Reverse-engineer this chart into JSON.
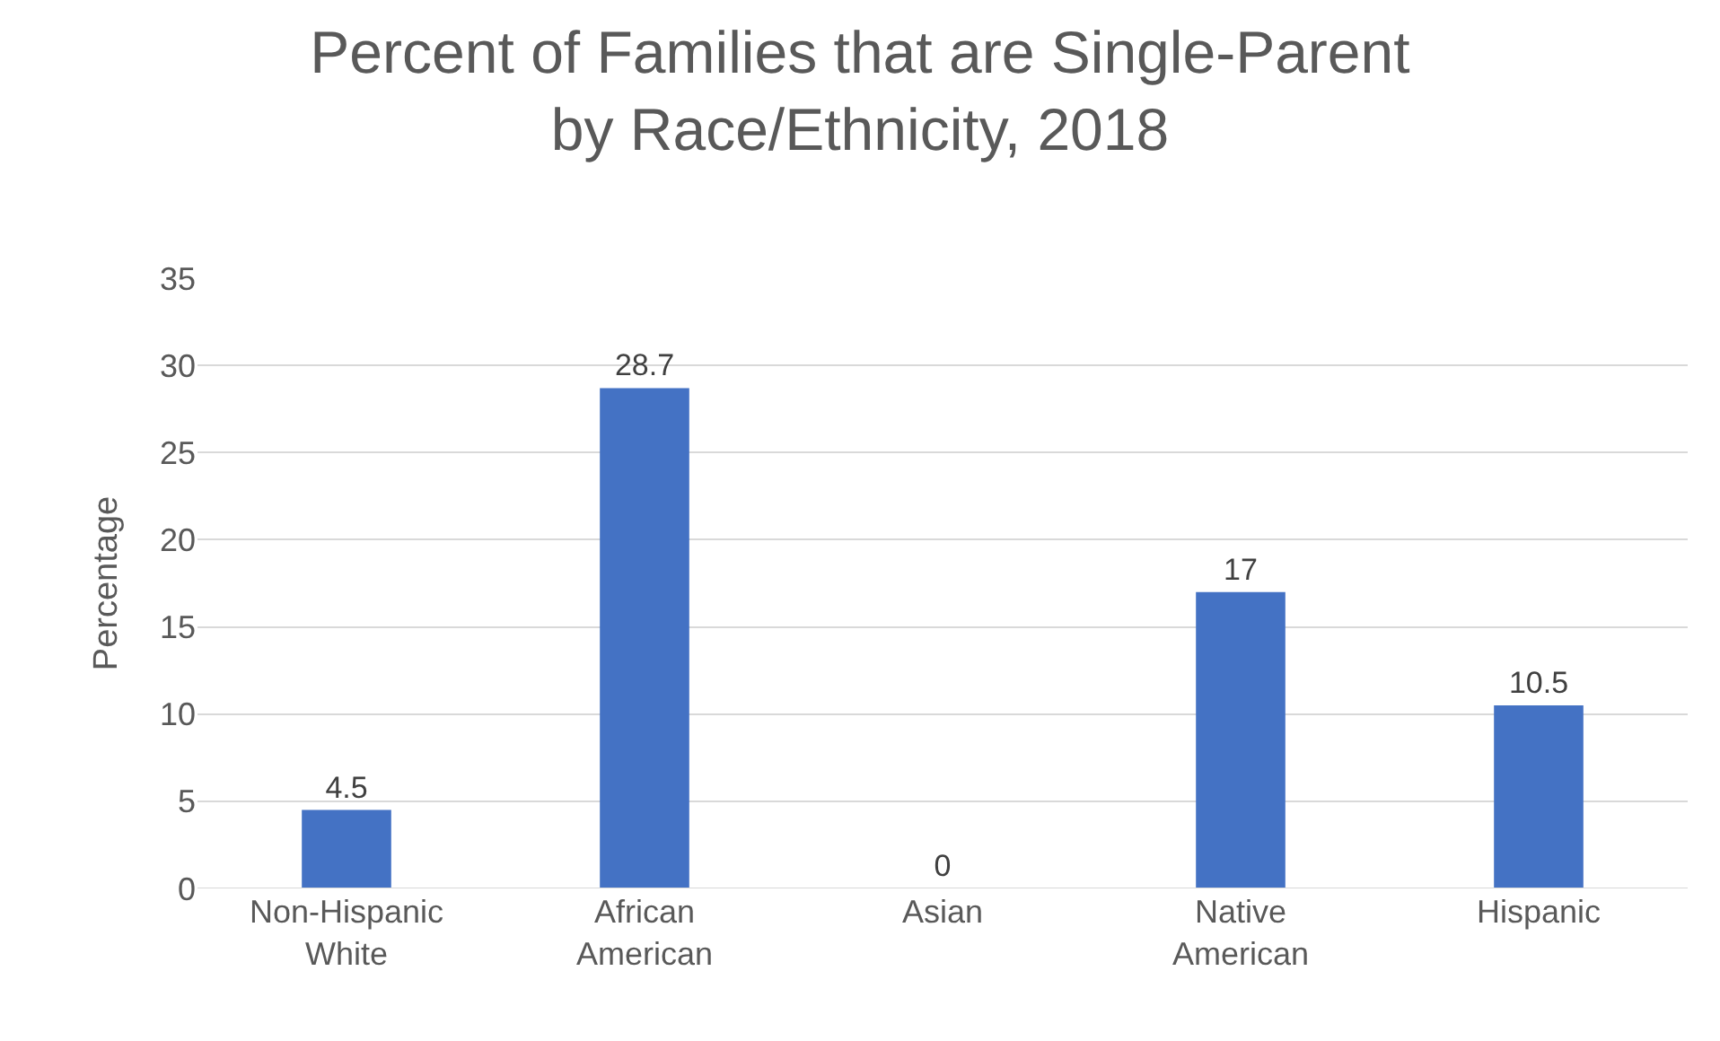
{
  "chart_data": {
    "type": "bar",
    "title": "Percent of Families that are Single-Parent by Race/Ethnicity, 2018",
    "ylabel": "Percentage",
    "categories": [
      "Non-Hispanic White",
      "African American",
      "Asian",
      "Native American",
      "Hispanic"
    ],
    "values": [
      4.5,
      28.7,
      0,
      17,
      10.5
    ],
    "color": "#4472c4",
    "ylim": [
      0,
      35
    ],
    "yticks": [
      0,
      5,
      10,
      15,
      20,
      25,
      30,
      35
    ],
    "grid": "y",
    "data_labels": true
  }
}
